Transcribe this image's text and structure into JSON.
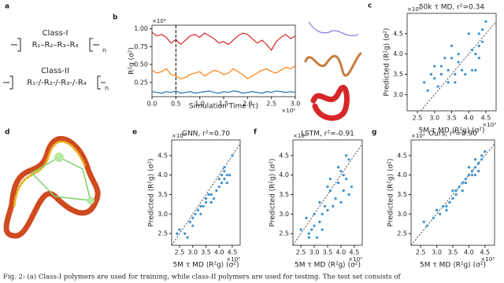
{
  "panel_a": {
    "label": "a",
    "class1": "Class-I",
    "chain1": "R₁–R₂–R₃–R₄",
    "class2": "Class-II",
    "chain2": "R₁-/-R₂-/-R₃-/-R₄",
    "sub": "n"
  },
  "panel_d": {
    "label": "d"
  },
  "caption": "Fig. 2: (a) Class-I polymers are used for training, while class-II polymers are used for testing. The test set consists of",
  "chart_data": [
    {
      "type": "line",
      "label": "b",
      "ylabel": "R²g (σ²)",
      "xlabel": "Simulation Time (τ)",
      "x_multiplier": "×10⁵",
      "y_multiplier": "×10⁴",
      "x": [
        0,
        0.1,
        0.2,
        0.3,
        0.4,
        0.5,
        0.6,
        0.7,
        0.8,
        0.9,
        1.0,
        1.1,
        1.2,
        1.3,
        1.4,
        1.5,
        1.6,
        1.7,
        1.8,
        1.9,
        2.0,
        2.1,
        2.2,
        2.3,
        2.4,
        2.5,
        2.6,
        2.7,
        2.8,
        2.9,
        3.0
      ],
      "series": [
        {
          "color": "#d62728",
          "values": [
            0.95,
            0.9,
            0.92,
            0.88,
            0.8,
            0.85,
            0.78,
            0.84,
            0.9,
            0.92,
            0.88,
            0.94,
            0.9,
            0.86,
            0.8,
            0.82,
            0.78,
            0.84,
            0.9,
            0.94,
            0.92,
            0.86,
            0.8,
            0.84,
            0.78,
            0.7,
            0.82,
            0.88,
            0.92,
            0.86,
            0.9
          ]
        },
        {
          "color": "#ff7f0e",
          "values": [
            0.42,
            0.38,
            0.4,
            0.44,
            0.36,
            0.34,
            0.3,
            0.32,
            0.36,
            0.38,
            0.4,
            0.34,
            0.38,
            0.42,
            0.4,
            0.36,
            0.38,
            0.44,
            0.4,
            0.36,
            0.3,
            0.34,
            0.38,
            0.42,
            0.44,
            0.4,
            0.38,
            0.42,
            0.46,
            0.44,
            0.48
          ]
        },
        {
          "color": "#1f77b4",
          "values": [
            0.12,
            0.11,
            0.1,
            0.12,
            0.11,
            0.13,
            0.1,
            0.11,
            0.12,
            0.1,
            0.11,
            0.12,
            0.13,
            0.11,
            0.1,
            0.12,
            0.11,
            0.13,
            0.12,
            0.1,
            0.11,
            0.12,
            0.11,
            0.1,
            0.12,
            0.11,
            0.13,
            0.12,
            0.11,
            0.12,
            0.11
          ]
        }
      ],
      "vline": 0.5,
      "xlim": [
        0,
        3.0
      ],
      "ylim": [
        0.05,
        1.05
      ],
      "xticks": [
        {
          "value": 0,
          "label": "0.0"
        },
        0.5,
        {
          "value": 1,
          "label": "1.0"
        },
        1.5,
        {
          "value": 2,
          "label": "2.0"
        },
        2.5,
        {
          "value": 3,
          "label": "3.0"
        }
      ],
      "yticks": [
        0.25,
        {
          "value": 0.5,
          "label": "0.50"
        },
        0.75,
        {
          "value": 1,
          "label": "1.00"
        }
      ]
    },
    {
      "type": "scatter",
      "label": "c",
      "title": "50k τ MD, r²=0.34",
      "xlabel": "5M τ MD ⟨R²g⟩ (σ²)",
      "ylabel": "Predicted ⟨R²g⟩ (σ²)",
      "x_multiplier": "×10³",
      "y_multiplier": "×10³",
      "color": "#3a8fd0",
      "x": [
        2.7,
        2.8,
        2.9,
        3.0,
        3.1,
        3.2,
        3.2,
        3.3,
        3.4,
        3.4,
        3.5,
        3.5,
        3.6,
        3.7,
        3.7,
        3.8,
        3.9,
        4.0,
        4.1,
        4.2,
        4.2,
        4.3,
        4.3,
        4.4,
        4.4,
        4.5,
        3.0,
        3.6,
        4.1,
        4.3
      ],
      "values": [
        3.3,
        3.1,
        3.5,
        3.4,
        3.2,
        3.7,
        3.5,
        3.9,
        3.6,
        3.3,
        3.9,
        4.2,
        3.5,
        3.8,
        4.0,
        3.6,
        3.5,
        4.5,
        4.1,
        4.0,
        3.6,
        4.2,
        4.5,
        4.6,
        4.3,
        4.8,
        3.7,
        3.3,
        3.6,
        3.9
      ],
      "xlim": [
        2.2,
        4.8
      ],
      "ylim": [
        2.6,
        5.0
      ],
      "xticks": [
        2.5,
        {
          "value": 3,
          "label": "3.0"
        },
        3.5,
        {
          "value": 4,
          "label": "4.0"
        },
        4.5
      ],
      "yticks": [
        {
          "value": 3,
          "label": "3.0"
        },
        3.5,
        {
          "value": 4,
          "label": "4.0"
        },
        4.5
      ]
    },
    {
      "type": "scatter",
      "label": "e",
      "title": "GNN, r²=0.70",
      "xlabel": "5M τ MD ⟨R²g⟩ (σ²)",
      "ylabel": "Predicted ⟨R²g⟩ (σ²)",
      "x_multiplier": "×10³",
      "y_multiplier": "×10³",
      "color": "#3a8fd0",
      "x": [
        2.4,
        2.5,
        2.7,
        2.8,
        2.9,
        3.0,
        3.1,
        3.2,
        3.3,
        3.3,
        3.4,
        3.5,
        3.5,
        3.6,
        3.7,
        3.8,
        3.9,
        4.0,
        4.0,
        4.1,
        4.1,
        4.2,
        4.2,
        4.2,
        4.3,
        4.3,
        4.4,
        4.5,
        3.0,
        3.7
      ],
      "values": [
        2.5,
        2.6,
        2.5,
        2.4,
        2.8,
        2.7,
        3.0,
        3.1,
        3.2,
        3.0,
        3.2,
        3.3,
        3.4,
        3.5,
        3.3,
        3.4,
        3.6,
        3.9,
        3.7,
        4.0,
        3.8,
        4.1,
        3.9,
        4.2,
        4.0,
        3.8,
        4.0,
        4.5,
        2.9,
        3.5
      ],
      "xlim": [
        2.2,
        4.8
      ],
      "ylim": [
        2.2,
        4.9
      ],
      "xticks": [
        2.5,
        {
          "value": 3,
          "label": "3.0"
        },
        3.5,
        {
          "value": 4,
          "label": "4.0"
        },
        4.5
      ],
      "yticks": [
        2.5,
        {
          "value": 3,
          "label": "3.0"
        },
        3.5,
        {
          "value": 4,
          "label": "4.0"
        },
        4.5
      ]
    },
    {
      "type": "scatter",
      "label": "f",
      "title": "LSTM, r²=-0.91",
      "xlabel": "5M τ MD ⟨R²g⟩ (σ²)",
      "ylabel": "Predicted ⟨R²g⟩ (σ²)",
      "x_multiplier": "×10³",
      "y_multiplier": "×10³",
      "color": "#3a8fd0",
      "x": [
        2.5,
        2.7,
        2.8,
        2.9,
        3.0,
        3.0,
        3.1,
        3.2,
        3.2,
        3.3,
        3.4,
        3.5,
        3.5,
        3.6,
        3.7,
        3.8,
        3.9,
        4.0,
        4.0,
        4.1,
        4.2,
        4.2,
        4.3,
        4.3,
        4.4,
        2.8,
        3.3,
        3.6,
        3.9,
        4.1
      ],
      "values": [
        2.6,
        2.9,
        2.5,
        2.6,
        2.7,
        3.0,
        2.4,
        2.8,
        3.3,
        3.0,
        3.2,
        3.1,
        3.7,
        3.6,
        3.2,
        3.4,
        3.8,
        3.3,
        4.1,
        3.6,
        4.5,
        3.9,
        4.4,
        3.5,
        3.7,
        2.4,
        2.6,
        3.9,
        4.2,
        4.0
      ],
      "xlim": [
        2.2,
        4.8
      ],
      "ylim": [
        2.2,
        4.9
      ],
      "xticks": [
        2.5,
        {
          "value": 3,
          "label": "3.0"
        },
        3.5,
        {
          "value": 4,
          "label": "4.0"
        },
        4.5
      ],
      "yticks": [
        2.5,
        {
          "value": 3,
          "label": "3.0"
        },
        3.5,
        {
          "value": 4,
          "label": "4.0"
        },
        4.5
      ]
    },
    {
      "type": "scatter",
      "label": "g",
      "title": "Ours, r²=0.90",
      "xlabel": "5M τ MD ⟨R²g⟩ (σ²)",
      "ylabel": "Predicted ⟨R²g⟩ (σ²)",
      "x_multiplier": "×10³",
      "y_multiplier": "×10³",
      "color": "#3a8fd0",
      "x": [
        2.6,
        2.7,
        2.9,
        3.0,
        3.1,
        3.2,
        3.3,
        3.4,
        3.5,
        3.5,
        3.6,
        3.7,
        3.8,
        3.8,
        3.9,
        4.0,
        4.0,
        4.1,
        4.1,
        4.2,
        4.2,
        4.2,
        4.3,
        4.3,
        4.4,
        4.4,
        3.3,
        3.6,
        3.9,
        4.5
      ],
      "values": [
        2.8,
        2.7,
        2.9,
        3.1,
        3.0,
        3.2,
        3.2,
        3.3,
        3.4,
        3.6,
        3.5,
        3.7,
        3.6,
        3.8,
        3.9,
        4.0,
        4.2,
        4.0,
        4.1,
        4.2,
        4.4,
        4.0,
        4.3,
        4.1,
        4.4,
        4.5,
        3.1,
        3.6,
        3.8,
        4.6
      ],
      "xlim": [
        2.2,
        4.8
      ],
      "ylim": [
        2.2,
        4.9
      ],
      "xticks": [
        2.5,
        {
          "value": 3,
          "label": "3.0"
        },
        3.5,
        {
          "value": 4,
          "label": "4.0"
        },
        4.5
      ],
      "yticks": [
        2.5,
        {
          "value": 3,
          "label": "3.0"
        },
        3.5,
        {
          "value": 4,
          "label": "4.0"
        },
        4.5
      ]
    }
  ]
}
